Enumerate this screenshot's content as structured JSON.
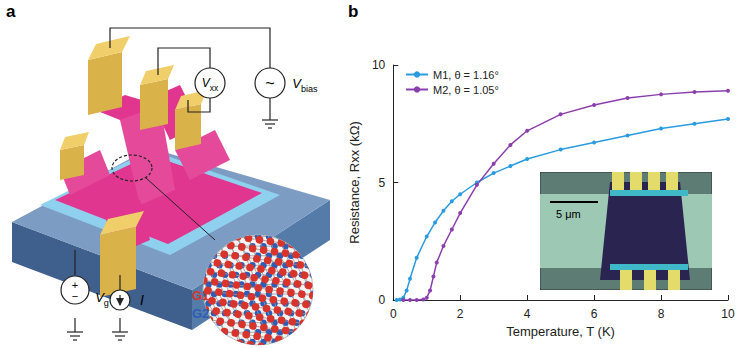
{
  "chart_data": {
    "type": "line",
    "panel_label": "b",
    "xlabel": "Temperature, T (K)",
    "ylabel": "Resistance, Rxx (kΩ)",
    "xlim": [
      0,
      10
    ],
    "xticks": [
      0,
      2,
      4,
      6,
      8,
      10
    ],
    "ylim": [
      0,
      10
    ],
    "yticks": [
      0,
      5,
      10
    ],
    "grid": false,
    "legend": "upper left",
    "marker": "circle",
    "series": [
      {
        "name": "M1, θ = 1.16°",
        "color": "#2a9be0",
        "x": [
          0.1,
          0.2,
          0.3,
          0.4,
          0.5,
          0.7,
          1.0,
          1.25,
          1.5,
          1.75,
          2.0,
          2.5,
          3.0,
          3.5,
          4.0,
          5.0,
          6.0,
          7.0,
          8.0,
          9.0,
          10.0
        ],
        "values": [
          0,
          0.02,
          0.1,
          0.4,
          0.9,
          1.8,
          2.7,
          3.3,
          3.8,
          4.2,
          4.5,
          5.0,
          5.4,
          5.7,
          6.0,
          6.4,
          6.7,
          7.0,
          7.3,
          7.5,
          7.7
        ]
      },
      {
        "name": "M2, θ = 1.05°",
        "color": "#8b3fae",
        "x": [
          0.3,
          0.5,
          0.7,
          0.9,
          1.0,
          1.1,
          1.2,
          1.3,
          1.5,
          1.75,
          2.0,
          2.5,
          3.0,
          3.5,
          4.0,
          5.0,
          6.0,
          7.0,
          8.0,
          9.0,
          10.0
        ],
        "values": [
          0,
          0,
          0,
          0.02,
          0.1,
          0.4,
          1.0,
          1.6,
          2.3,
          3.0,
          3.7,
          4.9,
          5.8,
          6.6,
          7.2,
          7.9,
          8.3,
          8.6,
          8.75,
          8.85,
          8.9
        ]
      }
    ],
    "inset": {
      "scale_bar": "5 μm"
    }
  },
  "panel_a": {
    "label": "a",
    "voltmeter": {
      "main": "V",
      "sub": "xx"
    },
    "bias": {
      "main": "V",
      "sub": "bias",
      "symbol": "~"
    },
    "gate": {
      "main": "V",
      "sub": "g",
      "plus": "+",
      "minus": "−"
    },
    "current": "I",
    "layers": [
      {
        "label": "G1",
        "color": "#d9342b"
      },
      {
        "label": "G2",
        "color": "#2e5db8"
      }
    ]
  }
}
